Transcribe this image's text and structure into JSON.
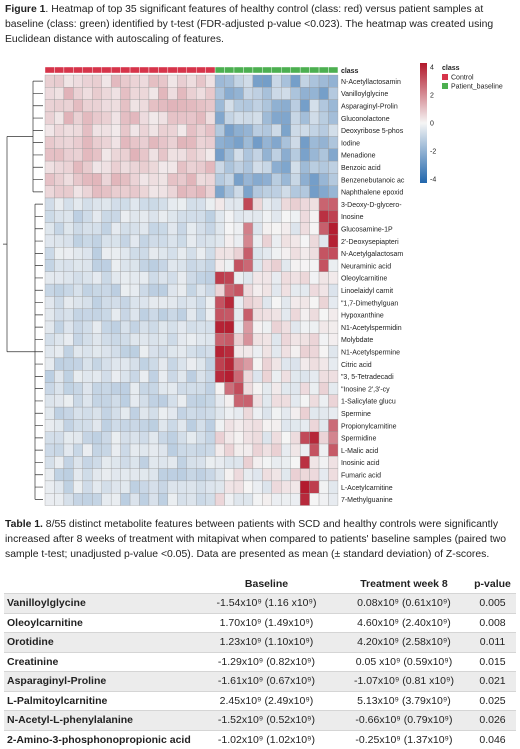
{
  "figure_caption": {
    "label": "Figure 1",
    "text": ". Heatmap of top 35 significant features of healthy control (class: red) versus patient samples at baseline (class: green) identified by t-test (FDR-adjusted p-value <0.023). The heatmap was created using Euclidean distance with autoscaling of features."
  },
  "heatmap": {
    "class_label": "class",
    "legend_title": "class",
    "legend_items": [
      {
        "label": "Control",
        "color": "#d6344a"
      },
      {
        "label": "Patient_baseline",
        "color": "#4caf50"
      }
    ],
    "colorbar_ticks": [
      "4",
      "2",
      "0",
      "-2",
      "-4"
    ],
    "n_control": 18,
    "n_patient": 13,
    "features": [
      "N-Acetyllactosamin",
      "Vanilloylglycine",
      "Asparaginyl-Prolin",
      "Gluconolactone",
      "Deoxyribose 5-phos",
      "Iodine",
      "Menadione",
      "Benzoic acid",
      "Benzenebutanoic ac",
      "Naphthalene epoxid",
      "3-Deoxy-D-glycero-",
      "Inosine",
      "Glucosamine-1P",
      "2'-Deoxysepiapteri",
      "N-Acetylgalactosam",
      "Neuraminic acid",
      "Oleoylcarnitine",
      "Linoelaidyl carnit",
      "\"1,7-Dimethylguan",
      "Hypoxanthine",
      "N1-Acetylspermidin",
      "Molybdate",
      "N1-Acetylspermine",
      "Citric acid",
      "\"3, 5-Tetradecadi",
      "\"Inosine 2',3'-cy",
      "1-Salicylate glucu",
      "Spermine",
      "Propionylcarnitine",
      "Spermidine",
      "L-Malic acid",
      "Inosinic acid",
      "Fumaric acid",
      "L-Acetylcarnitine",
      "7-Methylguanine"
    ]
  },
  "table_caption": {
    "label": "Table 1.",
    "text": " 8/55 distinct metabolite features between patients with SCD and healthy controls were significantly increased after 8 weeks of treatment with mitapivat when compared to patients' baseline samples (paired two sample t-test; unadjusted p-value <0.05). Data are presented as mean (± standard deviation) of Z-scores."
  },
  "table": {
    "headers": [
      "",
      "Baseline",
      "Treatment week 8",
      "p-value"
    ],
    "rows": [
      {
        "name": "Vanilloylglycine",
        "baseline": "-1.54x10⁹ (1.16 x10⁹)",
        "week8": "0.08x10⁹ (0.61x10⁹)",
        "p": "0.005"
      },
      {
        "name": "Oleoylcarnitine",
        "baseline": "1.70x10⁹ (1.49x10⁹)",
        "week8": "4.60x10⁹ (2.40x10⁹)",
        "p": "0.008"
      },
      {
        "name": "Orotidine",
        "baseline": "1.23x10⁹ (1.10x10⁹)",
        "week8": "4.20x10⁹ (2.58x10⁹)",
        "p": "0.011"
      },
      {
        "name": "Creatinine",
        "baseline": "-1.29x10⁹ (0.82x10⁹)",
        "week8": "0.05 x10⁹ (0.59x10⁹)",
        "p": "0.015"
      },
      {
        "name": "Asparaginyl-Proline",
        "baseline": "-1.61x10⁹ (0.67x10⁹)",
        "week8": "-1.07x10⁹ (0.81 x10⁹)",
        "p": "0.021"
      },
      {
        "name": "L-Palmitoylcarnitine",
        "baseline": "2.45x10⁹ (2.49x10⁹)",
        "week8": "5.13x10⁹ (3.79x10⁹)",
        "p": "0.025"
      },
      {
        "name": "N-Acetyl-L-phenylalanine",
        "baseline": "-1.52x10⁹ (0.52x10⁹)",
        "week8": "-0.66x10⁹ (0.79x10⁹)",
        "p": "0.026"
      },
      {
        "name": "2-Amino-3-phosphonopropionic acid",
        "baseline": "-1.02x10⁹ (1.02x10⁹)",
        "week8": "-0.25x10⁹ (1.37x10⁹)",
        "p": "0.046"
      }
    ]
  }
}
